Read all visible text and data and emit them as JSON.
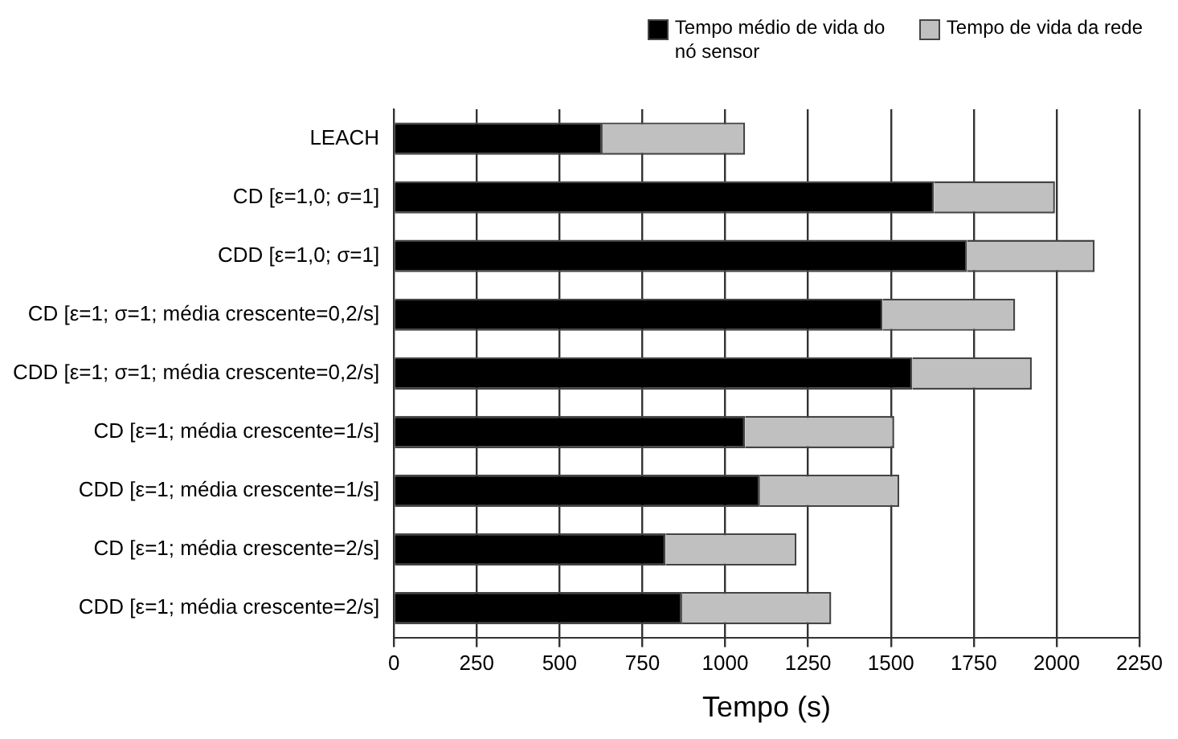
{
  "chart_data": {
    "type": "bar",
    "orientation": "horizontal",
    "stacked": true,
    "xlabel": "Tempo (s)",
    "categories": [
      "LEACH",
      "CD [ε=1,0; σ=1]",
      "CDD [ε=1,0; σ=1]",
      "CD [ε=1; σ=1; média crescente=0,2/s]",
      "CDD [ε=1; σ=1; média crescente=0,2/s]",
      "CD [ε=1; média crescente=1/s]",
      "CDD [ε=1; média crescente=1/s]",
      "CD [ε=1; média crescente=2/s]",
      "CDD [ε=1; média crescente=2/s]"
    ],
    "series": [
      {
        "name": "Tempo médio de vida do nó sensor",
        "color": "#000000",
        "values": [
          630,
          1630,
          1730,
          1475,
          1565,
          1060,
          1105,
          820,
          870
        ]
      },
      {
        "name": "Tempo de vida da rede",
        "color": "#c0c0c0",
        "values": [
          430,
          365,
          385,
          400,
          360,
          450,
          420,
          395,
          450
        ]
      }
    ],
    "xlim": [
      0,
      2250
    ],
    "xticks": [
      0,
      250,
      500,
      750,
      1000,
      1250,
      1500,
      1750,
      2000,
      2250
    ],
    "grid": "x",
    "legend": "top right"
  }
}
